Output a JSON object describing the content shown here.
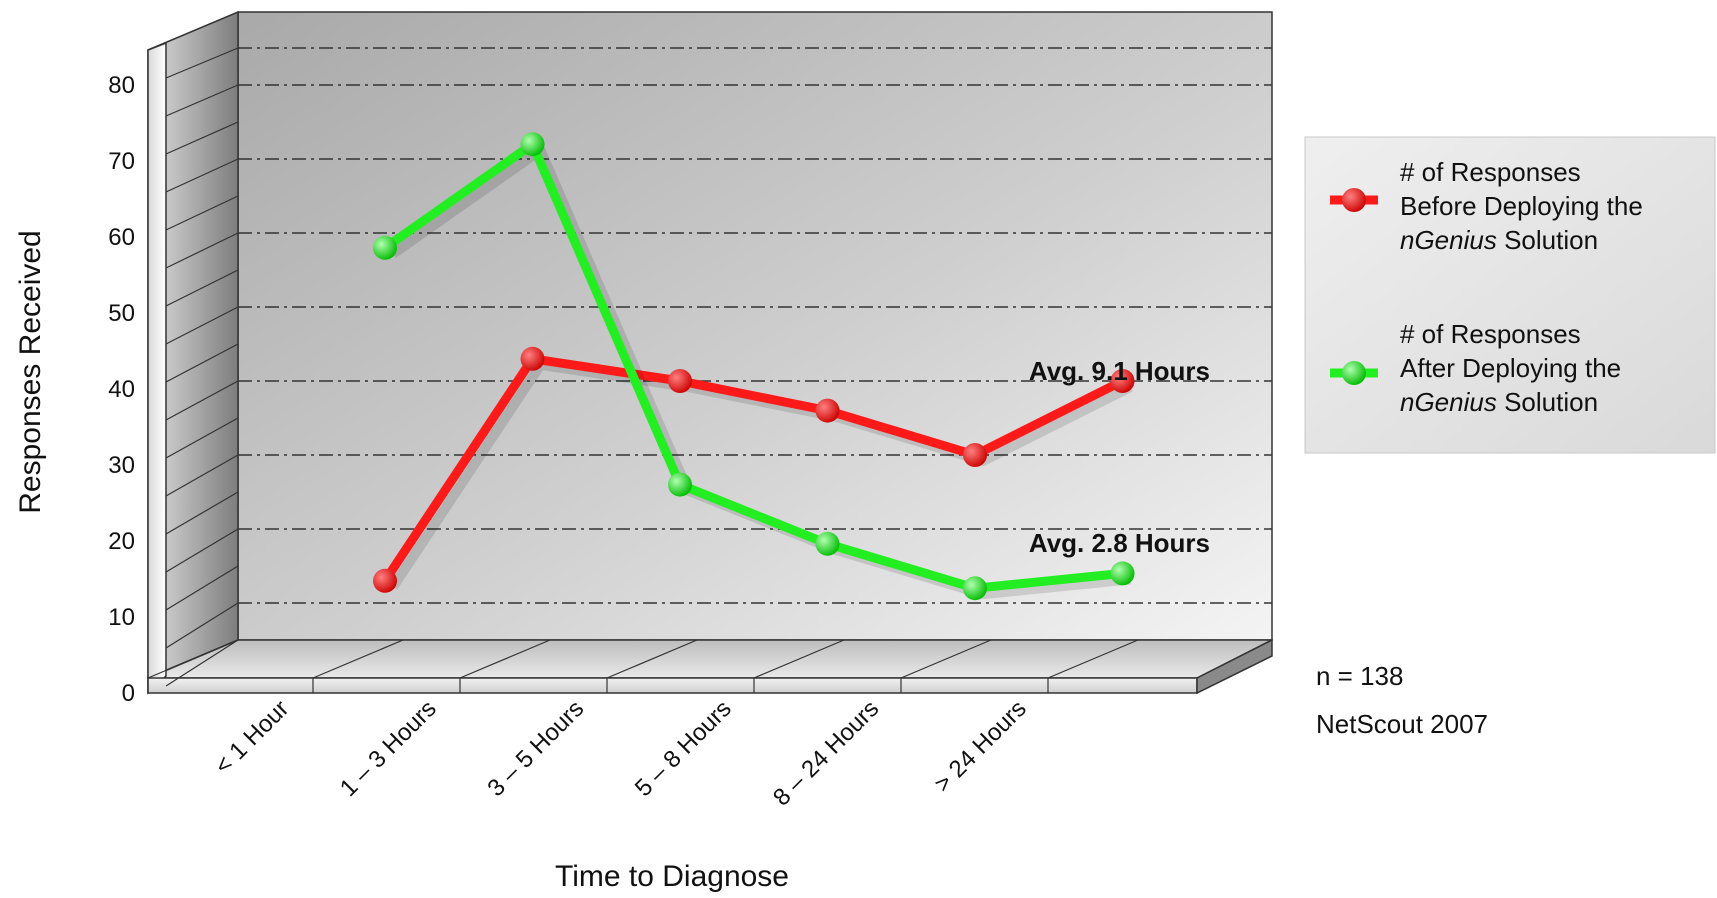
{
  "chart_data": {
    "type": "line",
    "categories": [
      "< 1 Hour",
      "1 – 3 Hours",
      "3 – 5 Hours",
      "5 – 8 Hours",
      "8 – 24 Hours",
      "> 24 Hours"
    ],
    "series": [
      {
        "name_lines": [
          "# of Responses",
          "Before Deploying the",
          "nGenius Solution"
        ],
        "values": [
          8,
          38,
          35,
          31,
          25,
          35
        ],
        "color": "#ff1a1a",
        "marker_color": "#e00000"
      },
      {
        "name_lines": [
          "# of Responses",
          "After Deploying the",
          "nGenius Solution"
        ],
        "values": [
          53,
          67,
          21,
          13,
          7,
          9
        ],
        "color": "#22ee22",
        "marker_color": "#11dd11"
      }
    ],
    "xlabel": "Time to Diagnose",
    "ylabel": "Responses Received",
    "ylim": [
      0,
      80
    ],
    "yticks": [
      0,
      10,
      20,
      30,
      40,
      50,
      60,
      70,
      80
    ],
    "annotations": [
      "Avg. 9.1 Hours",
      "Avg. 2.8 Hours"
    ],
    "legend_position": "right",
    "grid": true,
    "three_d": true
  },
  "notes": {
    "sample": "n = 138",
    "source": "NetScout 2007"
  }
}
